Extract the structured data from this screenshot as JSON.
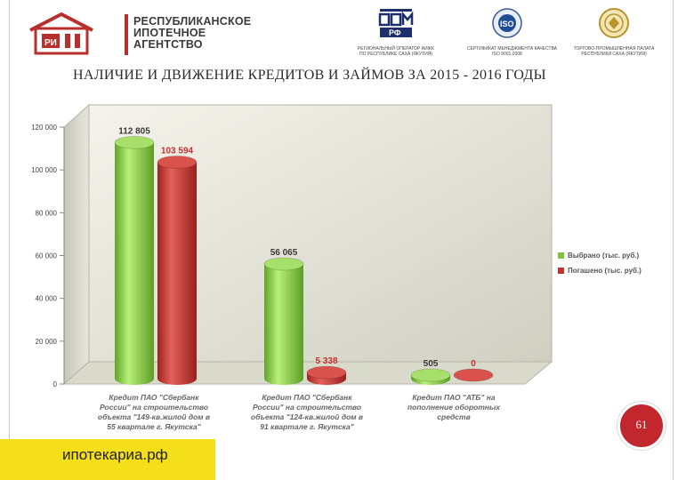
{
  "header": {
    "logo_lines": [
      "РЕСПУБЛИКАНСКОЕ",
      "ИПОТЕЧНОЕ",
      "АГЕНТСТВО"
    ],
    "partners": [
      {
        "icon": "dom-rf-logo",
        "caption_lines": [
          "РЕГИОНАЛЬНЫЙ ОПЕРАТОР АИЖК",
          "ПО РЕСПУБЛИКЕ САХА (ЯКУТИЯ)"
        ]
      },
      {
        "icon": "iso-logo",
        "caption_lines": [
          "СЕРТИФИКАТ МЕНЕДЖМЕНТА КАЧЕСТВА",
          "ISO 9001:2008"
        ]
      },
      {
        "icon": "chamber-of-commerce-logo",
        "caption_lines": [
          "ТОРГОВО-ПРОМЫШЛЕННАЯ ПАЛАТА",
          "РЕСПУБЛИКИ САХА (ЯКУТИЯ)"
        ]
      }
    ]
  },
  "title": "НАЛИЧИЕ И ДВИЖЕНИЕ КРЕДИТОВ И ЗАЙМОВ ЗА 2015 - 2016 ГОДЫ",
  "colors": {
    "accent": "#c1272d",
    "footer": "#f5df1b",
    "series_green": "#7dc63b",
    "series_red": "#c9302c"
  },
  "chart_data": {
    "type": "bar",
    "categories": [
      [
        "Кредит ПАО \"Сбербанк",
        "России\" на строительство",
        "объекта \"149-кв.жилой дом в",
        "55 квартале г. Якутска\""
      ],
      [
        "Кредит ПАО \"Сбербанк",
        "России\" на строительство",
        "объекта \"124-кв.жилой дом в",
        "91 квартале г. Якутска\""
      ],
      [
        "Кредит ПАО \"АТБ\" на",
        "пополнение оборотных",
        "средств"
      ]
    ],
    "series": [
      {
        "name": "Выбрано (тыс. руб.)",
        "values": [
          112805,
          56065,
          505
        ],
        "labels": [
          "112 805",
          "56 065",
          "505"
        ],
        "color": "#7dc63b"
      },
      {
        "name": "Погашено (тыс. руб.)",
        "values": [
          103594,
          5338,
          0
        ],
        "labels": [
          "103 594",
          "5 338",
          "0"
        ],
        "color": "#c9302c"
      }
    ],
    "yticks": [
      "0",
      "20 000",
      "40 000",
      "60 000",
      "80 000",
      "100 000",
      "120 000"
    ],
    "ylim": [
      0,
      120000
    ],
    "grid": false,
    "legend": "right",
    "style": "3d-cylinder"
  },
  "footer": {
    "site": "ипотекариа.рф"
  },
  "page": {
    "number": "61"
  }
}
